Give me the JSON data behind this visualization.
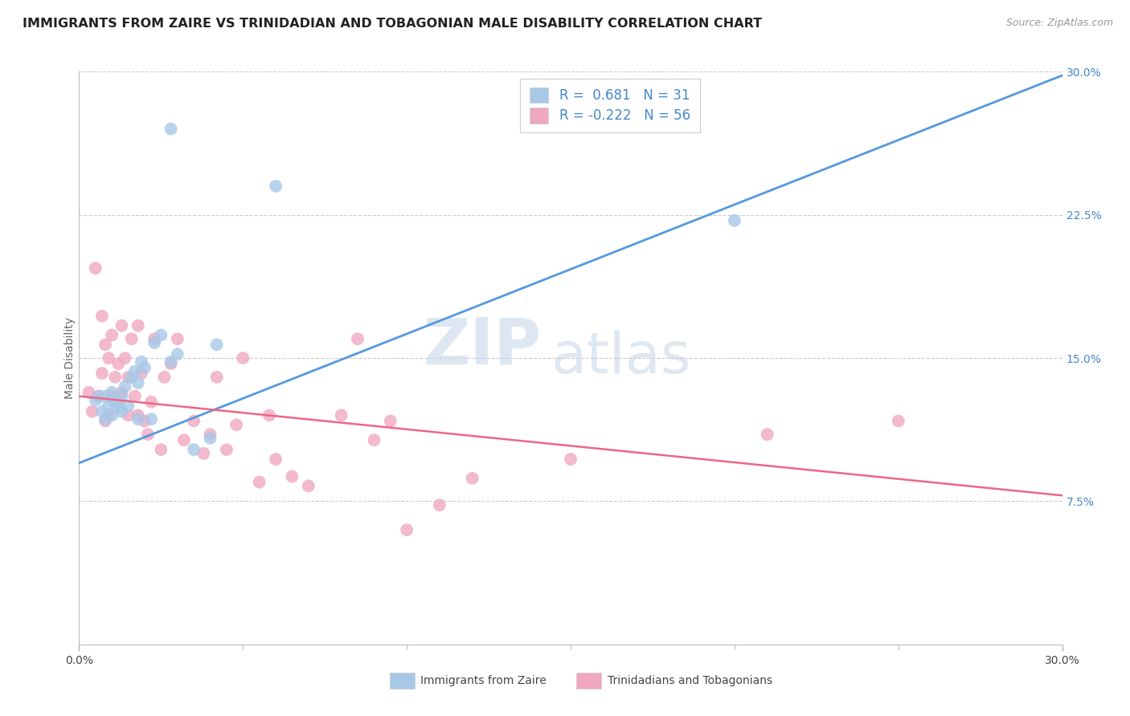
{
  "title": "IMMIGRANTS FROM ZAIRE VS TRINIDADIAN AND TOBAGONIAN MALE DISABILITY CORRELATION CHART",
  "source": "Source: ZipAtlas.com",
  "ylabel": "Male Disability",
  "xlim": [
    0.0,
    0.3
  ],
  "ylim": [
    0.0,
    0.3
  ],
  "x_tick_positions": [
    0.0,
    0.3
  ],
  "x_tick_labels": [
    "0.0%",
    "30.0%"
  ],
  "y_tick_values": [
    0.075,
    0.15,
    0.225,
    0.3
  ],
  "y_tick_labels": [
    "7.5%",
    "15.0%",
    "22.5%",
    "30.0%"
  ],
  "color_blue": "#a8c8e8",
  "color_pink": "#f0a8c0",
  "line_blue": "#5599dd",
  "line_pink": "#ee6688",
  "text_blue": "#4488cc",
  "watermark_zip": "ZIP",
  "watermark_atlas": "atlas",
  "label1": "Immigrants from Zaire",
  "label2": "Trinidadians and Tobagonians",
  "blue_scatter": [
    [
      0.005,
      0.128
    ],
    [
      0.006,
      0.13
    ],
    [
      0.007,
      0.122
    ],
    [
      0.008,
      0.118
    ],
    [
      0.008,
      0.13
    ],
    [
      0.009,
      0.125
    ],
    [
      0.01,
      0.12
    ],
    [
      0.01,
      0.132
    ],
    [
      0.011,
      0.127
    ],
    [
      0.012,
      0.124
    ],
    [
      0.013,
      0.122
    ],
    [
      0.013,
      0.13
    ],
    [
      0.014,
      0.135
    ],
    [
      0.015,
      0.125
    ],
    [
      0.016,
      0.14
    ],
    [
      0.017,
      0.143
    ],
    [
      0.018,
      0.118
    ],
    [
      0.018,
      0.137
    ],
    [
      0.019,
      0.148
    ],
    [
      0.02,
      0.145
    ],
    [
      0.022,
      0.118
    ],
    [
      0.023,
      0.158
    ],
    [
      0.025,
      0.162
    ],
    [
      0.028,
      0.148
    ],
    [
      0.03,
      0.152
    ],
    [
      0.035,
      0.102
    ],
    [
      0.04,
      0.108
    ],
    [
      0.042,
      0.157
    ],
    [
      0.028,
      0.27
    ],
    [
      0.06,
      0.24
    ],
    [
      0.2,
      0.222
    ]
  ],
  "pink_scatter": [
    [
      0.003,
      0.132
    ],
    [
      0.004,
      0.122
    ],
    [
      0.005,
      0.197
    ],
    [
      0.006,
      0.13
    ],
    [
      0.007,
      0.172
    ],
    [
      0.007,
      0.142
    ],
    [
      0.008,
      0.117
    ],
    [
      0.008,
      0.157
    ],
    [
      0.009,
      0.15
    ],
    [
      0.009,
      0.12
    ],
    [
      0.01,
      0.162
    ],
    [
      0.01,
      0.13
    ],
    [
      0.011,
      0.14
    ],
    [
      0.012,
      0.147
    ],
    [
      0.012,
      0.127
    ],
    [
      0.013,
      0.167
    ],
    [
      0.013,
      0.132
    ],
    [
      0.014,
      0.15
    ],
    [
      0.015,
      0.14
    ],
    [
      0.015,
      0.12
    ],
    [
      0.016,
      0.16
    ],
    [
      0.017,
      0.13
    ],
    [
      0.018,
      0.167
    ],
    [
      0.018,
      0.12
    ],
    [
      0.019,
      0.142
    ],
    [
      0.02,
      0.117
    ],
    [
      0.021,
      0.11
    ],
    [
      0.022,
      0.127
    ],
    [
      0.023,
      0.16
    ],
    [
      0.025,
      0.102
    ],
    [
      0.026,
      0.14
    ],
    [
      0.028,
      0.147
    ],
    [
      0.03,
      0.16
    ],
    [
      0.032,
      0.107
    ],
    [
      0.035,
      0.117
    ],
    [
      0.038,
      0.1
    ],
    [
      0.04,
      0.11
    ],
    [
      0.042,
      0.14
    ],
    [
      0.045,
      0.102
    ],
    [
      0.048,
      0.115
    ],
    [
      0.05,
      0.15
    ],
    [
      0.055,
      0.085
    ],
    [
      0.058,
      0.12
    ],
    [
      0.06,
      0.097
    ],
    [
      0.065,
      0.088
    ],
    [
      0.07,
      0.083
    ],
    [
      0.08,
      0.12
    ],
    [
      0.085,
      0.16
    ],
    [
      0.09,
      0.107
    ],
    [
      0.095,
      0.117
    ],
    [
      0.1,
      0.06
    ],
    [
      0.11,
      0.073
    ],
    [
      0.12,
      0.087
    ],
    [
      0.15,
      0.097
    ],
    [
      0.21,
      0.11
    ],
    [
      0.25,
      0.117
    ]
  ],
  "blue_line_x": [
    0.0,
    0.3
  ],
  "blue_line_y": [
    0.095,
    0.298
  ],
  "pink_line_x": [
    0.0,
    0.3
  ],
  "pink_line_y": [
    0.13,
    0.078
  ],
  "grid_color": "#cccccc",
  "bg_color": "#ffffff",
  "title_fontsize": 11.5,
  "tick_fontsize": 10
}
